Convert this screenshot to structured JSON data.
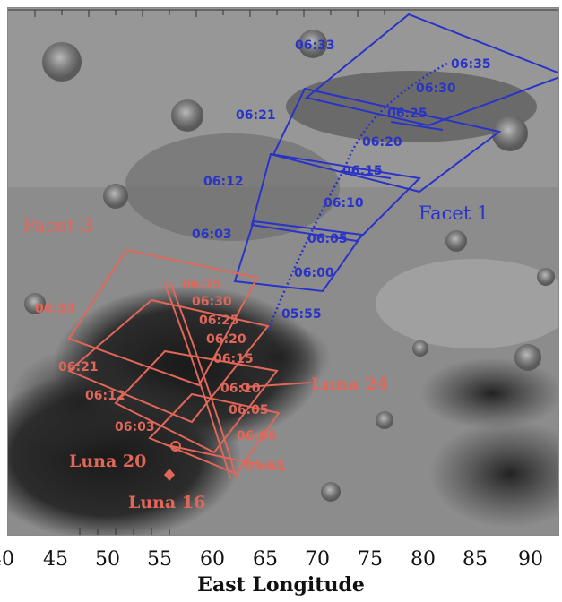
{
  "axis": {
    "title": "East Longitude",
    "ticks": [
      "40",
      "45",
      "50",
      "55",
      "60",
      "65",
      "70",
      "75",
      "80",
      "85",
      "90"
    ]
  },
  "facets": {
    "facet1": {
      "label": "Facet 1",
      "color": "#2a33c8"
    },
    "facet3": {
      "label": "Facet 3",
      "color": "#e0675a"
    }
  },
  "blue_times": {
    "t0633": "06:33",
    "t0635": "06:35",
    "t0630": "06:30",
    "t0621": "06:21",
    "t0625": "06:25",
    "t0620": "06:20",
    "t0612": "06:12",
    "t0615": "06:15",
    "t0610": "06:10",
    "t0603": "06:03",
    "t0605": "06:05",
    "t0600": "06:00",
    "t0555": "05:55"
  },
  "red_times": {
    "t0635": "06:35",
    "t0633": "06:33",
    "t0630": "06:30",
    "t0625": "06:25",
    "t0620": "06:20",
    "t0621": "06:21",
    "t0615": "06:15",
    "t0612": "06:12",
    "t0610": "06:10",
    "t0603": "06:03",
    "t0605": "06:05",
    "t0600": "06:00",
    "t0555": "05:55"
  },
  "sites": {
    "luna24": "Luna 24",
    "luna20": "Luna 20",
    "luna16": "Luna 16"
  }
}
